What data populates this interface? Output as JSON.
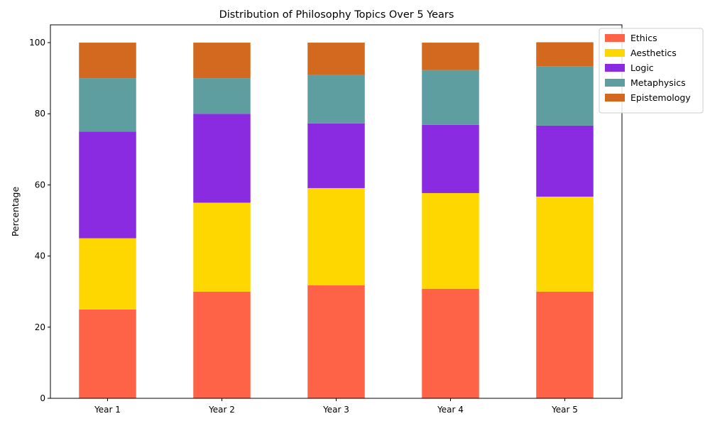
{
  "chart_data": {
    "type": "bar",
    "stacked": true,
    "title": "Distribution of Philosophy Topics Over 5 Years",
    "xlabel": "",
    "ylabel": "Percentage",
    "categories": [
      "Year 1",
      "Year 2",
      "Year 3",
      "Year 4",
      "Year 5"
    ],
    "ylim": [
      0,
      105
    ],
    "yticks": [
      0,
      20,
      40,
      60,
      80,
      100
    ],
    "grid": false,
    "legend_position": "top-right",
    "series": [
      {
        "name": "Ethics",
        "color": "#FF6347",
        "values": [
          25,
          30,
          31.8,
          30.8,
          30
        ]
      },
      {
        "name": "Aesthetics",
        "color": "#FFD700",
        "values": [
          20,
          25,
          27.3,
          26.9,
          26.7
        ]
      },
      {
        "name": "Logic",
        "color": "#8A2BE2",
        "values": [
          30,
          25,
          18.2,
          19.2,
          20
        ]
      },
      {
        "name": "Metaphysics",
        "color": "#5F9EA0",
        "values": [
          15,
          10,
          13.6,
          15.4,
          16.7
        ]
      },
      {
        "name": "Epistemology",
        "color": "#D2691E",
        "values": [
          10,
          10,
          9.1,
          7.7,
          6.7
        ]
      }
    ]
  }
}
